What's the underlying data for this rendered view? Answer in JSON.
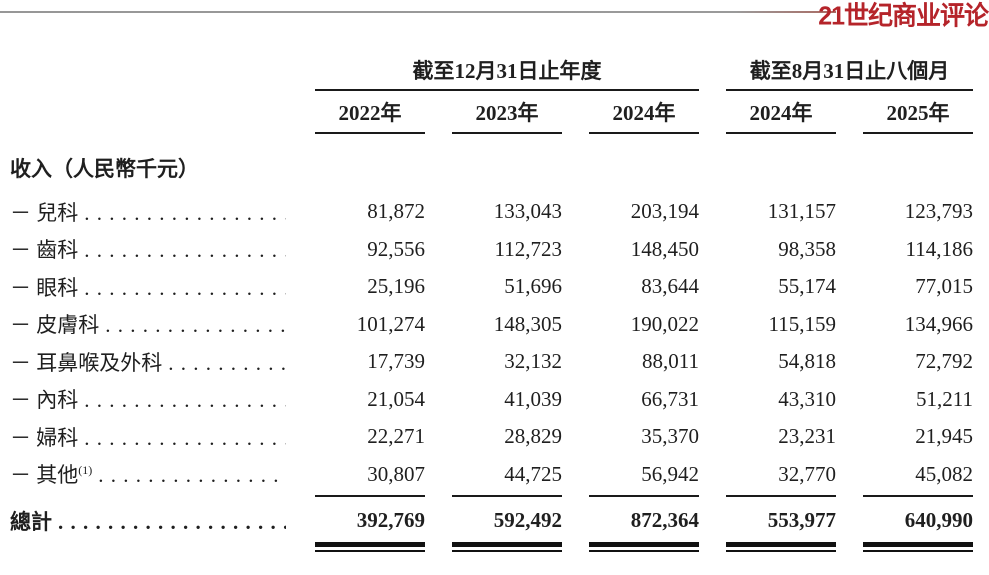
{
  "brand": {
    "logo_text": "21世纪商业评论",
    "logo_color": "#b5242a"
  },
  "colors": {
    "text": "#1f1f1f",
    "rule_gray": "#9a9a9a",
    "table_line": "#1a1a1a"
  },
  "table": {
    "leader_dots": ". . . . . . . . . . . . . . . . . . . . . . . . . . . . . . . . . . . . . . . . . . . . .",
    "col_groups": [
      {
        "label": "截至12月31日止年度",
        "span": 3
      },
      {
        "label": "截至8月31日止八個月",
        "span": 2
      }
    ],
    "year_headers": [
      "2022年",
      "2023年",
      "2024年",
      "2024年",
      "2025年"
    ],
    "section_header": "收入（人民幣千元）",
    "rows": [
      {
        "label": "－ 兒科",
        "values": [
          "81,872",
          "133,043",
          "203,194",
          "131,157",
          "123,793"
        ]
      },
      {
        "label": "－ 齒科",
        "values": [
          "92,556",
          "112,723",
          "148,450",
          "98,358",
          "114,186"
        ]
      },
      {
        "label": "－ 眼科",
        "values": [
          "25,196",
          "51,696",
          "83,644",
          "55,174",
          "77,015"
        ]
      },
      {
        "label": "－ 皮膚科",
        "values": [
          "101,274",
          "148,305",
          "190,022",
          "115,159",
          "134,966"
        ]
      },
      {
        "label": "－ 耳鼻喉及外科",
        "values": [
          "17,739",
          "32,132",
          "88,011",
          "54,818",
          "72,792"
        ]
      },
      {
        "label": "－ 內科",
        "values": [
          "21,054",
          "41,039",
          "66,731",
          "43,310",
          "51,211"
        ]
      },
      {
        "label": "－ 婦科",
        "values": [
          "22,271",
          "28,829",
          "35,370",
          "23,231",
          "21,945"
        ]
      },
      {
        "label": "－ 其他",
        "note": "(1)",
        "values": [
          "30,807",
          "44,725",
          "56,942",
          "32,770",
          "45,082"
        ]
      }
    ],
    "total": {
      "label": "總計",
      "values": [
        "392,769",
        "592,492",
        "872,364",
        "553,977",
        "640,990"
      ]
    }
  }
}
